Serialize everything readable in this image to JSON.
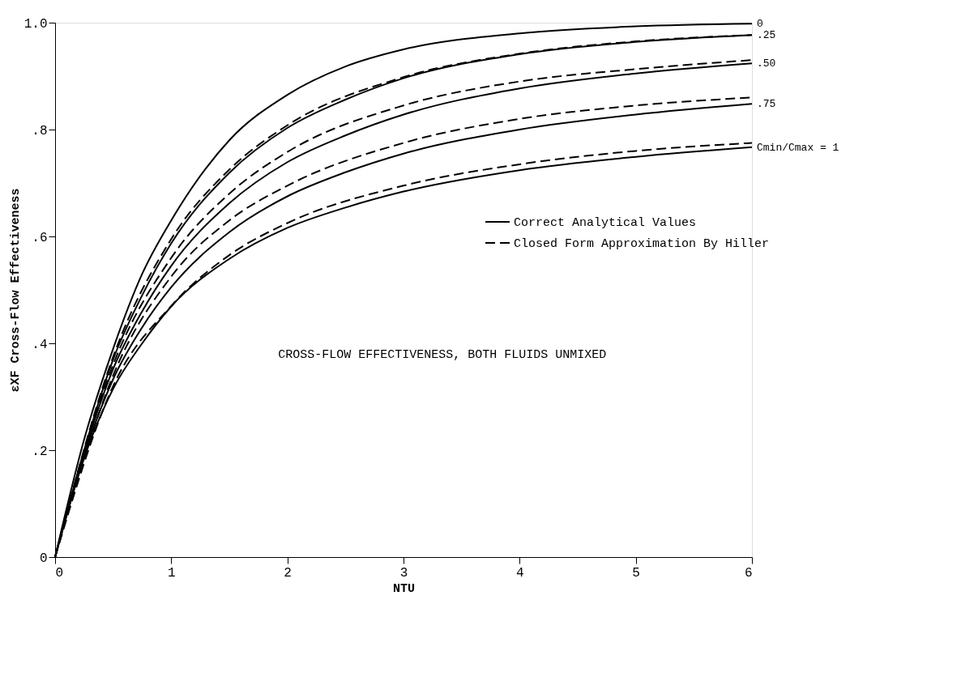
{
  "chart_data": {
    "type": "line",
    "xlabel": "NTU",
    "ylabel": "εXF Cross-Flow Effectiveness",
    "xlim": [
      0,
      6
    ],
    "xticks": [
      0,
      1,
      2,
      3,
      4,
      5,
      6
    ],
    "ylim": [
      0,
      1
    ],
    "yticks": [
      0,
      {
        "value": 0.2,
        "label": ".2"
      },
      {
        "value": 0.4,
        "label": ".4"
      },
      {
        "value": 0.6,
        "label": ".6"
      },
      {
        "value": 0.8,
        "label": ".8"
      },
      {
        "value": 1,
        "label": "1.0"
      }
    ],
    "grid": false,
    "legend": "right",
    "annotations": [
      "CROSS-FLOW EFFECTIVENESS, BOTH FLUIDS UNMIXED",
      "Correct Analytical Values",
      "Closed Form Approximation By Hiller"
    ],
    "series": [
      {
        "name": "0",
        "color": "#000000",
        "line_style": "solid",
        "x": [
          0,
          0.25,
          0.5,
          0.75,
          1,
          1.5,
          2,
          2.5,
          3,
          4,
          5,
          6
        ],
        "values": [
          0,
          0.22,
          0.39,
          0.53,
          0.63,
          0.78,
          0.865,
          0.918,
          0.95,
          0.98,
          0.993,
          0.998
        ]
      },
      {
        "name": ".25",
        "color": "#000000",
        "line_style": "solid",
        "x": [
          0,
          0.25,
          0.5,
          0.75,
          1,
          1.5,
          2,
          2.5,
          3,
          4,
          5,
          6
        ],
        "values": [
          0,
          0.2,
          0.37,
          0.49,
          0.587,
          0.719,
          0.803,
          0.856,
          0.896,
          0.941,
          0.964,
          0.977
        ]
      },
      {
        "name": ".50",
        "color": "#000000",
        "line_style": "solid",
        "x": [
          0,
          0.25,
          0.5,
          0.75,
          1,
          1.5,
          2,
          2.5,
          3,
          4,
          5,
          6
        ],
        "values": [
          0,
          0.195,
          0.352,
          0.46,
          0.545,
          0.662,
          0.739,
          0.789,
          0.828,
          0.877,
          0.905,
          0.924
        ]
      },
      {
        "name": ".75",
        "color": "#000000",
        "line_style": "solid",
        "x": [
          0,
          0.25,
          0.5,
          0.75,
          1,
          1.5,
          2,
          2.5,
          3,
          4,
          5,
          6
        ],
        "values": [
          0,
          0.19,
          0.333,
          0.43,
          0.505,
          0.608,
          0.675,
          0.72,
          0.755,
          0.8,
          0.828,
          0.848
        ]
      },
      {
        "name": "Cmin/Cmax = 1",
        "color": "#000000",
        "line_style": "solid",
        "x": [
          0,
          0.25,
          0.5,
          0.75,
          1,
          1.5,
          2,
          2.5,
          3,
          4,
          5,
          6
        ],
        "values": [
          0,
          0.185,
          0.315,
          0.4,
          0.469,
          0.558,
          0.616,
          0.654,
          0.684,
          0.724,
          0.749,
          0.767
        ]
      },
      {
        "color": "#000000",
        "line_style": "dashed",
        "x": [
          0,
          0.5,
          1,
          1.5,
          2,
          3,
          4,
          5,
          6
        ],
        "values": [
          0,
          0.375,
          0.595,
          0.725,
          0.808,
          0.898,
          0.942,
          0.965,
          0.977
        ]
      },
      {
        "color": "#000000",
        "line_style": "dashed",
        "x": [
          0,
          0.5,
          1,
          1.5,
          2,
          3,
          4,
          5,
          6
        ],
        "values": [
          0,
          0.36,
          0.56,
          0.68,
          0.758,
          0.845,
          0.89,
          0.913,
          0.93
        ]
      },
      {
        "color": "#000000",
        "line_style": "dashed",
        "x": [
          0,
          0.5,
          1,
          1.5,
          2,
          3,
          4,
          5,
          6
        ],
        "values": [
          0,
          0.34,
          0.525,
          0.63,
          0.695,
          0.775,
          0.82,
          0.845,
          0.86
        ]
      },
      {
        "color": "#000000",
        "line_style": "dashed",
        "x": [
          0,
          0.5,
          1,
          1.5,
          2,
          3,
          4,
          5,
          6
        ],
        "values": [
          0,
          0.32,
          0.47,
          0.565,
          0.625,
          0.695,
          0.735,
          0.76,
          0.775
        ]
      }
    ]
  }
}
